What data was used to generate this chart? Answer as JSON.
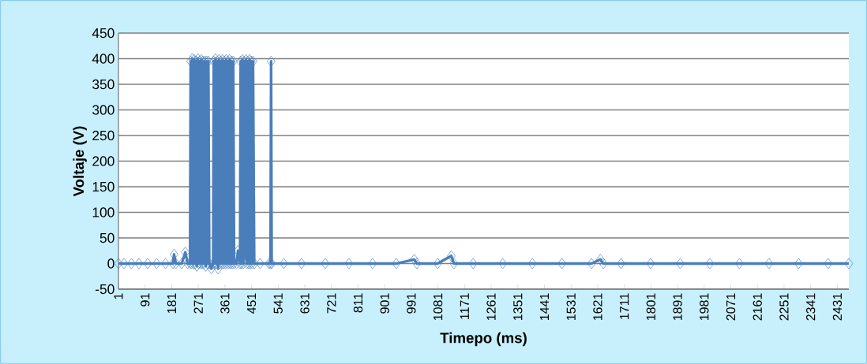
{
  "chart_data": {
    "type": "line",
    "xlabel": "Timepo (ms)",
    "ylabel": "Voltaje (V)",
    "color": "#4a7ebb",
    "marker": "diamond",
    "grid": "y",
    "x": [
      1,
      20,
      45,
      70,
      100,
      130,
      160,
      185,
      189,
      195,
      215,
      227,
      235,
      243,
      245,
      248,
      251,
      254,
      257,
      260,
      263,
      266,
      269,
      272,
      275,
      278,
      281,
      284,
      287,
      290,
      293,
      296,
      299,
      302,
      305,
      308,
      315,
      321,
      323,
      326,
      329,
      332,
      335,
      338,
      341,
      344,
      347,
      350,
      353,
      356,
      359,
      362,
      365,
      368,
      371,
      374,
      377,
      380,
      383,
      386,
      389,
      392,
      400,
      405,
      412,
      414,
      417,
      420,
      423,
      426,
      429,
      432,
      435,
      438,
      441,
      444,
      447,
      450,
      453,
      456,
      460,
      480,
      510,
      515,
      517,
      519,
      560,
      620,
      700,
      780,
      860,
      940,
      1001,
      1010,
      1080,
      1126,
      1135,
      1200,
      1300,
      1400,
      1500,
      1600,
      1630,
      1640,
      1700,
      1800,
      1900,
      2000,
      2100,
      2200,
      2300,
      2400,
      2470
    ],
    "values": [
      0,
      0,
      0,
      0,
      0,
      0,
      0,
      0,
      18,
      0,
      0,
      22,
      0,
      0,
      395,
      0,
      400,
      0,
      398,
      0,
      395,
      -5,
      400,
      0,
      395,
      0,
      398,
      0,
      395,
      0,
      395,
      -5,
      395,
      0,
      395,
      0,
      -10,
      0,
      395,
      0,
      400,
      0,
      395,
      -10,
      398,
      0,
      395,
      0,
      398,
      0,
      395,
      0,
      398,
      0,
      395,
      0,
      398,
      0,
      395,
      0,
      395,
      0,
      0,
      25,
      0,
      395,
      0,
      398,
      0,
      395,
      10,
      398,
      0,
      395,
      0,
      398,
      0,
      395,
      0,
      395,
      0,
      0,
      0,
      0,
      395,
      0,
      0,
      0,
      0,
      0,
      0,
      0,
      8,
      0,
      0,
      15,
      0,
      0,
      0,
      0,
      0,
      0,
      8,
      0,
      0,
      0,
      0,
      0,
      0,
      0,
      0,
      0,
      0
    ],
    "xlim": [
      1,
      2470
    ],
    "xticks": [
      1,
      91,
      181,
      271,
      361,
      451,
      541,
      631,
      721,
      811,
      901,
      991,
      1081,
      1171,
      1261,
      1351,
      1441,
      1531,
      1621,
      1711,
      1801,
      1891,
      1981,
      2071,
      2161,
      2251,
      2341,
      2431
    ],
    "ylim": [
      -50,
      450
    ],
    "yticks": [
      -50,
      0,
      50,
      100,
      150,
      200,
      250,
      300,
      350,
      400,
      450
    ]
  }
}
